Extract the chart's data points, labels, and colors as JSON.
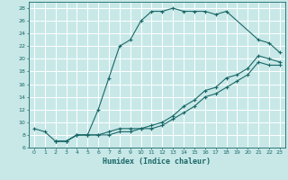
{
  "xlabel": "Humidex (Indice chaleur)",
  "ylabel": "",
  "xlim": [
    -0.5,
    23.5
  ],
  "ylim": [
    6,
    29
  ],
  "yticks": [
    6,
    8,
    10,
    12,
    14,
    16,
    18,
    20,
    22,
    24,
    26,
    28
  ],
  "xticks": [
    0,
    1,
    2,
    3,
    4,
    5,
    6,
    7,
    8,
    9,
    10,
    11,
    12,
    13,
    14,
    15,
    16,
    17,
    18,
    19,
    20,
    21,
    22,
    23
  ],
  "bg_color": "#c8e8e8",
  "line_color": "#1a6868",
  "grid_color": "#ffffff",
  "curve1_x": [
    0,
    1,
    2,
    3,
    4,
    5,
    6,
    7,
    8,
    9,
    10,
    11,
    12,
    13,
    14,
    15,
    16,
    17,
    18,
    21,
    22,
    23
  ],
  "curve1_y": [
    9,
    8.5,
    7,
    7,
    8,
    8,
    12,
    17,
    22,
    23,
    26,
    27.5,
    27.5,
    28,
    27.5,
    27.5,
    27.5,
    27,
    27.5,
    23,
    22.5,
    21
  ],
  "curve2_x": [
    2,
    3,
    4,
    5,
    6,
    7,
    8,
    9,
    10,
    11,
    12,
    13,
    14,
    15,
    16,
    17,
    18,
    19,
    20,
    21,
    22,
    23
  ],
  "curve2_y": [
    7,
    7,
    8,
    8,
    8,
    8.5,
    9,
    9,
    9,
    9.5,
    10,
    11,
    12.5,
    13.5,
    15,
    15.5,
    17,
    17.5,
    18.5,
    20.5,
    20,
    19.5
  ],
  "curve3_x": [
    2,
    3,
    4,
    5,
    6,
    7,
    8,
    9,
    10,
    11,
    12,
    13,
    14,
    15,
    16,
    17,
    18,
    19,
    20,
    21,
    22,
    23
  ],
  "curve3_y": [
    7,
    7,
    8,
    8,
    8,
    8,
    8.5,
    8.5,
    9,
    9,
    9.5,
    10.5,
    11.5,
    12.5,
    14,
    14.5,
    15.5,
    16.5,
    17.5,
    19.5,
    19,
    19
  ]
}
